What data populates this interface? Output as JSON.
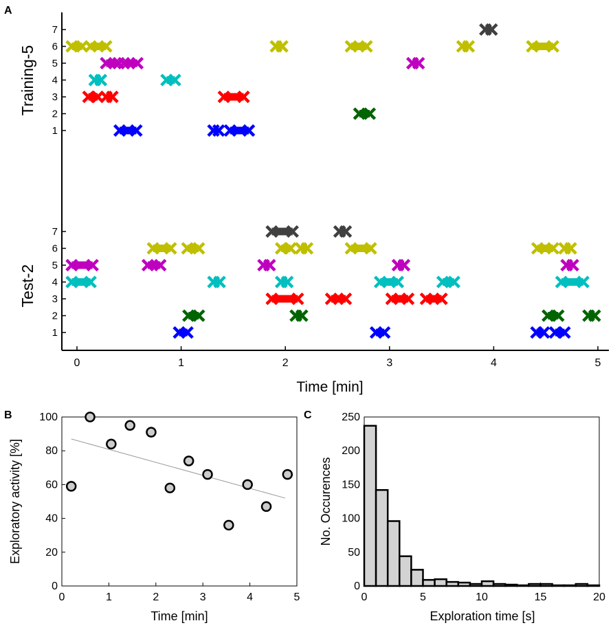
{
  "colors": {
    "object_1": "#0000ff",
    "object_2": "#006400",
    "object_3": "#ff0000",
    "object_4": "#00bfbf",
    "object_5": "#bf00bf",
    "object_6": "#bfbf00",
    "object_7": "#404040",
    "hist_fill": "#d3d3d3",
    "scatter_fill": "#cccccc",
    "trendline": "#999999"
  },
  "chart_data": [
    {
      "panel": "A",
      "type": "scatter",
      "xlabel": "Time [min]",
      "xlim": [
        -0.15,
        5.05
      ],
      "xticks": [
        "0",
        "1",
        "2",
        "3",
        "4",
        "5"
      ],
      "yticks": [
        "1",
        "2",
        "3",
        "4",
        "5",
        "6",
        "7"
      ],
      "groups": [
        {
          "name": "Training-5",
          "episodes": [
            {
              "object": 7,
              "start": 3.92,
              "end": 3.98
            },
            {
              "object": 6,
              "start": -0.05,
              "end": 0.05
            },
            {
              "object": 6,
              "start": 0.13,
              "end": 0.28
            },
            {
              "object": 6,
              "start": 1.91,
              "end": 1.97
            },
            {
              "object": 6,
              "start": 2.63,
              "end": 2.78
            },
            {
              "object": 6,
              "start": 3.7,
              "end": 3.76
            },
            {
              "object": 6,
              "start": 4.37,
              "end": 4.57
            },
            {
              "object": 5,
              "start": 0.28,
              "end": 0.4
            },
            {
              "object": 5,
              "start": 0.45,
              "end": 0.58
            },
            {
              "object": 5,
              "start": 3.22,
              "end": 3.28
            },
            {
              "object": 4,
              "start": 0.17,
              "end": 0.23
            },
            {
              "object": 4,
              "start": 0.86,
              "end": 0.94
            },
            {
              "object": 3,
              "start": 0.11,
              "end": 0.2
            },
            {
              "object": 3,
              "start": 0.28,
              "end": 0.34
            },
            {
              "object": 3,
              "start": 1.41,
              "end": 1.6
            },
            {
              "object": 2,
              "start": 2.71,
              "end": 2.81
            },
            {
              "object": 1,
              "start": 0.41,
              "end": 0.57
            },
            {
              "object": 1,
              "start": 1.31,
              "end": 1.36
            },
            {
              "object": 1,
              "start": 1.47,
              "end": 1.65
            }
          ]
        },
        {
          "name": "Test-2",
          "episodes": [
            {
              "object": 7,
              "start": 1.87,
              "end": 2.07
            },
            {
              "object": 7,
              "start": 2.52,
              "end": 2.58
            },
            {
              "object": 6,
              "start": 0.73,
              "end": 0.9
            },
            {
              "object": 6,
              "start": 1.06,
              "end": 1.17
            },
            {
              "object": 6,
              "start": 1.96,
              "end": 2.05
            },
            {
              "object": 6,
              "start": 2.15,
              "end": 2.21
            },
            {
              "object": 6,
              "start": 2.63,
              "end": 2.82
            },
            {
              "object": 6,
              "start": 4.42,
              "end": 4.57
            },
            {
              "object": 6,
              "start": 4.68,
              "end": 4.74
            },
            {
              "object": 5,
              "start": -0.05,
              "end": 0.15
            },
            {
              "object": 5,
              "start": 0.68,
              "end": 0.8
            },
            {
              "object": 5,
              "start": 1.79,
              "end": 1.85
            },
            {
              "object": 5,
              "start": 3.08,
              "end": 3.14
            },
            {
              "object": 5,
              "start": 4.7,
              "end": 4.76
            },
            {
              "object": 4,
              "start": -0.05,
              "end": 0.13
            },
            {
              "object": 4,
              "start": 1.31,
              "end": 1.37
            },
            {
              "object": 4,
              "start": 1.96,
              "end": 2.02
            },
            {
              "object": 4,
              "start": 2.91,
              "end": 3.08
            },
            {
              "object": 4,
              "start": 3.51,
              "end": 3.62
            },
            {
              "object": 4,
              "start": 4.65,
              "end": 4.86
            },
            {
              "object": 3,
              "start": 1.87,
              "end": 2.12
            },
            {
              "object": 3,
              "start": 2.44,
              "end": 2.58
            },
            {
              "object": 3,
              "start": 3.02,
              "end": 3.18
            },
            {
              "object": 3,
              "start": 3.35,
              "end": 3.5
            },
            {
              "object": 2,
              "start": 1.07,
              "end": 1.17
            },
            {
              "object": 2,
              "start": 2.1,
              "end": 2.16
            },
            {
              "object": 2,
              "start": 4.52,
              "end": 4.62
            },
            {
              "object": 2,
              "start": 4.91,
              "end": 4.97
            },
            {
              "object": 1,
              "start": 0.98,
              "end": 1.06
            },
            {
              "object": 1,
              "start": 2.87,
              "end": 2.95
            },
            {
              "object": 1,
              "start": 4.41,
              "end": 4.48
            },
            {
              "object": 1,
              "start": 4.59,
              "end": 4.68
            }
          ]
        }
      ]
    },
    {
      "panel": "B",
      "type": "scatter",
      "xlabel": "Time [min]",
      "ylabel": "Exploratory activity [%]",
      "xlim": [
        0,
        5
      ],
      "ylim": [
        0,
        100
      ],
      "xticks": [
        "0",
        "1",
        "2",
        "3",
        "4",
        "5"
      ],
      "yticks": [
        "0",
        "20",
        "40",
        "60",
        "80",
        "100"
      ],
      "points": [
        {
          "x": 0.2,
          "y": 59
        },
        {
          "x": 0.6,
          "y": 100
        },
        {
          "x": 1.05,
          "y": 84
        },
        {
          "x": 1.45,
          "y": 95
        },
        {
          "x": 1.9,
          "y": 91
        },
        {
          "x": 2.3,
          "y": 58
        },
        {
          "x": 2.7,
          "y": 74
        },
        {
          "x": 3.1,
          "y": 66
        },
        {
          "x": 3.55,
          "y": 36
        },
        {
          "x": 3.95,
          "y": 60
        },
        {
          "x": 4.35,
          "y": 47
        },
        {
          "x": 4.8,
          "y": 66
        }
      ],
      "fit": [
        {
          "x": 0.2,
          "y": 87
        },
        {
          "x": 4.75,
          "y": 52
        }
      ]
    },
    {
      "panel": "C",
      "type": "bar",
      "xlabel": "Exploration time [s]",
      "ylabel": "No. Occurences",
      "xlim": [
        0,
        20
      ],
      "ylim": [
        0,
        250
      ],
      "xticks": [
        "0",
        "5",
        "10",
        "15",
        "20"
      ],
      "yticks": [
        "0",
        "50",
        "100",
        "150",
        "200",
        "250"
      ],
      "bin_width": 1,
      "bins": [
        0,
        1,
        2,
        3,
        4,
        5,
        6,
        7,
        8,
        9,
        10,
        11,
        12,
        13,
        14,
        15,
        16,
        17,
        18,
        19
      ],
      "values": [
        237,
        142,
        96,
        44,
        24,
        9,
        10,
        6,
        5,
        3,
        7,
        3,
        2,
        1,
        3,
        3,
        1,
        1,
        3,
        1
      ]
    }
  ]
}
